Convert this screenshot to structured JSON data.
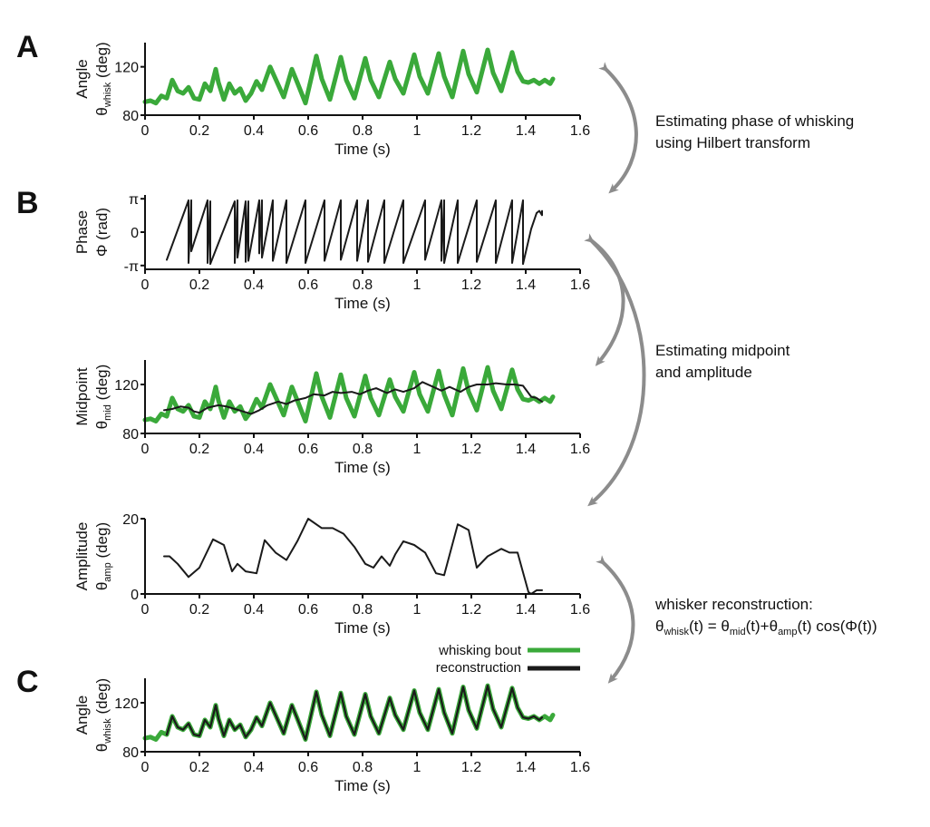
{
  "colors": {
    "whisking": "#3aa93a",
    "reconstruction": "#1a1a1a",
    "arrow": "#8c8c8c",
    "axis": "#111111"
  },
  "panel_letters": {
    "a": "A",
    "b": "B",
    "c": "C"
  },
  "annotations": {
    "phase_line1": "Estimating phase of whisking",
    "phase_line2": "using Hilbert transform",
    "mid_line1": "Estimating midpoint",
    "mid_line2": "and amplitude",
    "recon_title": "whisker reconstruction:",
    "formula": {
      "theta": "θ",
      "whisk": "whisk",
      "t_eq": "(t) =  ",
      "mid": "mid",
      "t_plus": "(t)+",
      "amp": "amp",
      "t_cos": "(t) cos(Φ(t))"
    }
  },
  "legend": {
    "whisking": "whisking bout",
    "reconstruction": "reconstruction"
  },
  "chart_data": [
    {
      "id": "angle",
      "type": "line",
      "xlabel": "Time (s)",
      "ylabel": {
        "line1": "Angle",
        "symbol": "θ",
        "sub": "whisk",
        "unit": "(deg)"
      },
      "xlim": [
        0,
        1.6
      ],
      "ylim": [
        80,
        140
      ],
      "xticks": [
        "0",
        "0.2",
        "0.4",
        "0.6",
        "0.8",
        "1",
        "1.2",
        "1.4",
        "1.6"
      ],
      "yticks": [
        {
          "v": 80,
          "label": "80"
        },
        {
          "v": 120,
          "label": "120"
        }
      ],
      "series": [
        {
          "key": "whisking",
          "color": "#3aa93a",
          "width": 5,
          "x": [
            0,
            0.02,
            0.04,
            0.06,
            0.08,
            0.1,
            0.12,
            0.14,
            0.16,
            0.18,
            0.2,
            0.22,
            0.24,
            0.26,
            0.27,
            0.29,
            0.31,
            0.33,
            0.35,
            0.37,
            0.39,
            0.41,
            0.43,
            0.46,
            0.48,
            0.51,
            0.54,
            0.56,
            0.59,
            0.63,
            0.65,
            0.68,
            0.72,
            0.74,
            0.77,
            0.81,
            0.83,
            0.86,
            0.9,
            0.92,
            0.95,
            0.99,
            1.01,
            1.04,
            1.08,
            1.1,
            1.13,
            1.17,
            1.19,
            1.22,
            1.26,
            1.28,
            1.31,
            1.35,
            1.37,
            1.39,
            1.41,
            1.43,
            1.45,
            1.47,
            1.49,
            1.5
          ],
          "y": [
            91,
            92,
            90,
            96,
            94,
            109,
            100,
            98,
            103,
            94,
            93,
            106,
            100,
            118,
            107,
            93,
            106,
            98,
            102,
            92,
            98,
            108,
            101,
            120,
            110,
            95,
            118,
            107,
            90,
            129,
            110,
            93,
            128,
            109,
            94,
            127,
            109,
            95,
            124,
            110,
            98,
            130,
            112,
            98,
            131,
            112,
            95,
            133,
            114,
            99,
            134,
            115,
            100,
            132,
            116,
            108,
            107,
            109,
            106,
            109,
            106,
            110
          ]
        }
      ]
    },
    {
      "id": "phase",
      "type": "line",
      "xlabel": "Time (s)",
      "ylabel": {
        "line1": "Phase",
        "line2": "Φ (rad)"
      },
      "xlim": [
        0,
        1.6
      ],
      "ylim": [
        -3.5,
        3.5
      ],
      "xticks": [
        "0",
        "0.2",
        "0.4",
        "0.6",
        "0.8",
        "1",
        "1.2",
        "1.4",
        "1.6"
      ],
      "yticks": [
        {
          "v": 3.1416,
          "label": "π"
        },
        {
          "v": 0,
          "label": "0"
        },
        {
          "v": -3.1416,
          "label": "-π"
        }
      ],
      "series": [
        {
          "key": "phase",
          "color": "#1a1a1a",
          "width": 2,
          "x": [
            0.08,
            0.16,
            0.16,
            0.17,
            0.17,
            0.23,
            0.23,
            0.24,
            0.24,
            0.33,
            0.33,
            0.34,
            0.34,
            0.37,
            0.37,
            0.38,
            0.38,
            0.42,
            0.42,
            0.43,
            0.43,
            0.47,
            0.47,
            0.52,
            0.52,
            0.59,
            0.59,
            0.66,
            0.66,
            0.72,
            0.72,
            0.78,
            0.78,
            0.82,
            0.82,
            0.88,
            0.88,
            0.95,
            0.95,
            1.03,
            1.03,
            1.09,
            1.09,
            1.1,
            1.1,
            1.15,
            1.15,
            1.22,
            1.22,
            1.29,
            1.29,
            1.35,
            1.35,
            1.39,
            1.39,
            1.42,
            1.44,
            1.45,
            1.46,
            1.46
          ],
          "y": [
            -2.6,
            3.0,
            -2.9,
            3.0,
            -1.8,
            3.0,
            -2.9,
            2.9,
            -3.0,
            2.9,
            -2.9,
            3.0,
            -2.4,
            2.9,
            -2.8,
            2.9,
            -2.7,
            3.0,
            -2.0,
            3.0,
            -2.4,
            3.0,
            -2.7,
            3.0,
            -2.9,
            3.0,
            -2.9,
            3.0,
            -2.7,
            3.0,
            -2.6,
            3.0,
            -2.7,
            3.0,
            -2.8,
            3.0,
            -2.9,
            3.0,
            -2.9,
            3.0,
            -2.6,
            3.0,
            -2.7,
            3.0,
            -2.9,
            3.0,
            -2.9,
            3.0,
            -2.8,
            3.0,
            -2.9,
            3.0,
            -2.9,
            3.0,
            -3.0,
            0.3,
            1.8,
            2.0,
            1.6,
            2.0
          ]
        }
      ]
    },
    {
      "id": "midpoint",
      "type": "line",
      "xlabel": "Time (s)",
      "ylabel": {
        "line1": "Midpoint",
        "symbol": "θ",
        "sub": "mid",
        "unit": "(deg)"
      },
      "xlim": [
        0,
        1.6
      ],
      "ylim": [
        80,
        140
      ],
      "xticks": [
        "0",
        "0.2",
        "0.4",
        "0.6",
        "0.8",
        "1",
        "1.2",
        "1.4",
        "1.6"
      ],
      "yticks": [
        {
          "v": 80,
          "label": "80"
        },
        {
          "v": 120,
          "label": "120"
        }
      ],
      "series": [
        {
          "key": "whisking",
          "color": "#3aa93a",
          "width": 5,
          "x": [
            0,
            0.02,
            0.04,
            0.06,
            0.08,
            0.1,
            0.12,
            0.14,
            0.16,
            0.18,
            0.2,
            0.22,
            0.24,
            0.26,
            0.27,
            0.29,
            0.31,
            0.33,
            0.35,
            0.37,
            0.39,
            0.41,
            0.43,
            0.46,
            0.48,
            0.51,
            0.54,
            0.56,
            0.59,
            0.63,
            0.65,
            0.68,
            0.72,
            0.74,
            0.77,
            0.81,
            0.83,
            0.86,
            0.9,
            0.92,
            0.95,
            0.99,
            1.01,
            1.04,
            1.08,
            1.1,
            1.13,
            1.17,
            1.19,
            1.22,
            1.26,
            1.28,
            1.31,
            1.35,
            1.37,
            1.39,
            1.41,
            1.43,
            1.45,
            1.47,
            1.49,
            1.5
          ],
          "y": [
            91,
            92,
            90,
            96,
            94,
            109,
            100,
            98,
            103,
            94,
            93,
            106,
            100,
            118,
            107,
            93,
            106,
            98,
            102,
            92,
            98,
            108,
            101,
            120,
            110,
            95,
            118,
            107,
            90,
            129,
            110,
            93,
            128,
            109,
            94,
            127,
            109,
            95,
            124,
            110,
            98,
            130,
            112,
            98,
            131,
            112,
            95,
            133,
            114,
            99,
            134,
            115,
            100,
            132,
            116,
            108,
            107,
            109,
            106,
            109,
            106,
            110
          ]
        },
        {
          "key": "reconstruction",
          "color": "#1a1a1a",
          "width": 2,
          "x": [
            0.07,
            0.1,
            0.13,
            0.16,
            0.18,
            0.2,
            0.23,
            0.27,
            0.3,
            0.33,
            0.36,
            0.39,
            0.42,
            0.45,
            0.49,
            0.52,
            0.55,
            0.59,
            0.62,
            0.66,
            0.69,
            0.72,
            0.76,
            0.79,
            0.82,
            0.85,
            0.89,
            0.92,
            0.95,
            0.99,
            1.02,
            1.06,
            1.09,
            1.12,
            1.16,
            1.19,
            1.22,
            1.26,
            1.29,
            1.33,
            1.36,
            1.39,
            1.42,
            1.44,
            1.46
          ],
          "y": [
            99,
            100,
            102,
            101,
            98,
            97,
            101,
            103,
            102,
            100,
            98,
            96,
            99,
            103,
            106,
            104,
            107,
            109,
            112,
            111,
            114,
            113,
            114,
            112,
            115,
            117,
            113,
            116,
            114,
            117,
            122,
            118,
            115,
            118,
            114,
            118,
            120,
            120,
            121,
            120,
            120,
            119,
            110,
            109,
            106
          ]
        }
      ]
    },
    {
      "id": "amplitude",
      "type": "line",
      "xlabel": "Time (s)",
      "ylabel": {
        "line1": "Amplitude",
        "symbol": "θ",
        "sub": "amp",
        "unit": "(deg)"
      },
      "xlim": [
        0,
        1.6
      ],
      "ylim": [
        0,
        20
      ],
      "xticks": [
        "0",
        "0.2",
        "0.4",
        "0.6",
        "0.8",
        "1",
        "1.2",
        "1.4",
        "1.6"
      ],
      "yticks": [
        {
          "v": 0,
          "label": "0"
        },
        {
          "v": 20,
          "label": "20"
        }
      ],
      "series": [
        {
          "key": "amplitude",
          "color": "#1a1a1a",
          "width": 2,
          "x": [
            0.07,
            0.09,
            0.12,
            0.16,
            0.2,
            0.25,
            0.29,
            0.32,
            0.34,
            0.37,
            0.41,
            0.44,
            0.48,
            0.52,
            0.56,
            0.6,
            0.65,
            0.69,
            0.73,
            0.77,
            0.81,
            0.84,
            0.87,
            0.9,
            0.92,
            0.95,
            0.99,
            1.03,
            1.07,
            1.1,
            1.15,
            1.19,
            1.22,
            1.26,
            1.31,
            1.34,
            1.37,
            1.41,
            1.42,
            1.44,
            1.45,
            1.46
          ],
          "y": [
            10,
            10,
            8,
            4.5,
            7,
            14.5,
            13,
            6,
            8,
            6,
            5.5,
            14.3,
            11,
            9,
            14,
            20,
            17.5,
            17.5,
            16,
            12.5,
            8,
            7,
            10,
            7.5,
            10.5,
            14,
            13,
            11,
            5.5,
            5,
            18.5,
            17,
            7,
            10,
            12,
            11,
            11,
            0.5,
            0,
            1,
            1,
            1
          ]
        }
      ]
    },
    {
      "id": "reconstruction",
      "type": "line",
      "xlabel": "Time (s)",
      "ylabel": {
        "line1": "Angle",
        "symbol": "θ",
        "sub": "whisk",
        "unit": "(deg)"
      },
      "xlim": [
        0,
        1.6
      ],
      "ylim": [
        80,
        140
      ],
      "xticks": [
        "0",
        "0.2",
        "0.4",
        "0.6",
        "0.8",
        "1",
        "1.2",
        "1.4",
        "1.6"
      ],
      "yticks": [
        {
          "v": 80,
          "label": "80"
        },
        {
          "v": 120,
          "label": "120"
        }
      ],
      "series": [
        {
          "key": "whisking",
          "color": "#3aa93a",
          "width": 5,
          "x": [
            0,
            0.02,
            0.04,
            0.06,
            0.08,
            0.1,
            0.12,
            0.14,
            0.16,
            0.18,
            0.2,
            0.22,
            0.24,
            0.26,
            0.27,
            0.29,
            0.31,
            0.33,
            0.35,
            0.37,
            0.39,
            0.41,
            0.43,
            0.46,
            0.48,
            0.51,
            0.54,
            0.56,
            0.59,
            0.63,
            0.65,
            0.68,
            0.72,
            0.74,
            0.77,
            0.81,
            0.83,
            0.86,
            0.9,
            0.92,
            0.95,
            0.99,
            1.01,
            1.04,
            1.08,
            1.1,
            1.13,
            1.17,
            1.19,
            1.22,
            1.26,
            1.28,
            1.31,
            1.35,
            1.37,
            1.39,
            1.41,
            1.43,
            1.45,
            1.47,
            1.49,
            1.5
          ],
          "y": [
            91,
            92,
            90,
            96,
            94,
            109,
            100,
            98,
            103,
            94,
            93,
            106,
            100,
            118,
            107,
            93,
            106,
            98,
            102,
            92,
            98,
            108,
            101,
            120,
            110,
            95,
            118,
            107,
            90,
            129,
            110,
            93,
            128,
            109,
            94,
            127,
            109,
            95,
            124,
            110,
            98,
            130,
            112,
            98,
            131,
            112,
            95,
            133,
            114,
            99,
            134,
            115,
            100,
            132,
            116,
            108,
            107,
            109,
            106,
            109,
            106,
            110
          ]
        },
        {
          "key": "reconstruction",
          "color": "#1a1a1a",
          "width": 2.2,
          "x": [
            0.08,
            0.1,
            0.12,
            0.14,
            0.16,
            0.18,
            0.2,
            0.22,
            0.24,
            0.26,
            0.27,
            0.29,
            0.31,
            0.33,
            0.35,
            0.37,
            0.39,
            0.41,
            0.43,
            0.46,
            0.48,
            0.51,
            0.54,
            0.56,
            0.59,
            0.63,
            0.65,
            0.68,
            0.72,
            0.74,
            0.77,
            0.81,
            0.83,
            0.86,
            0.9,
            0.92,
            0.95,
            0.99,
            1.01,
            1.04,
            1.08,
            1.1,
            1.13,
            1.17,
            1.19,
            1.22,
            1.26,
            1.28,
            1.31,
            1.35,
            1.37,
            1.39,
            1.41,
            1.43,
            1.45,
            1.46
          ],
          "y": [
            94,
            109,
            100,
            98,
            103,
            94,
            93,
            106,
            100,
            118,
            107,
            93,
            106,
            98,
            102,
            92,
            98,
            108,
            101,
            120,
            110,
            95,
            118,
            107,
            90,
            129,
            110,
            93,
            128,
            109,
            94,
            127,
            109,
            95,
            124,
            110,
            98,
            130,
            112,
            98,
            131,
            112,
            95,
            133,
            114,
            99,
            134,
            115,
            100,
            132,
            116,
            108,
            107,
            109,
            106,
            108
          ]
        }
      ]
    }
  ]
}
